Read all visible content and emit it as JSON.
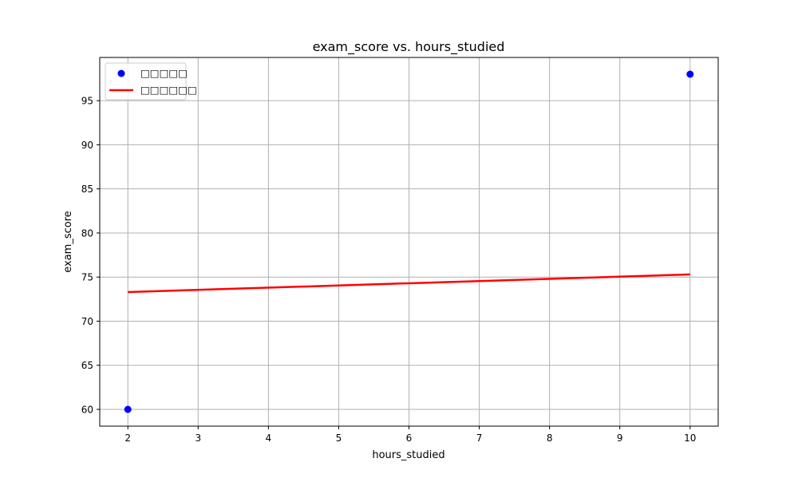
{
  "chart_data": {
    "type": "scatter",
    "title": "exam_score vs. hours_studied",
    "xlabel": "hours_studied",
    "ylabel": "exam_score",
    "xlim": [
      1.6,
      10.4
    ],
    "ylim": [
      58.1,
      99.9
    ],
    "x_ticks": [
      2,
      3,
      4,
      5,
      6,
      7,
      8,
      9,
      10
    ],
    "y_ticks": [
      60,
      65,
      70,
      75,
      80,
      85,
      90,
      95
    ],
    "grid": true,
    "legend_position": "top-left",
    "series": [
      {
        "name": "□□□□□",
        "kind": "scatter",
        "color": "#0000ff",
        "points": [
          {
            "x": 2,
            "y": 60
          },
          {
            "x": 10,
            "y": 98
          }
        ]
      },
      {
        "name": "□□□□□□",
        "kind": "line",
        "color": "#ff0000",
        "points": [
          {
            "x": 2,
            "y": 73.3
          },
          {
            "x": 10,
            "y": 75.3
          }
        ]
      }
    ]
  }
}
